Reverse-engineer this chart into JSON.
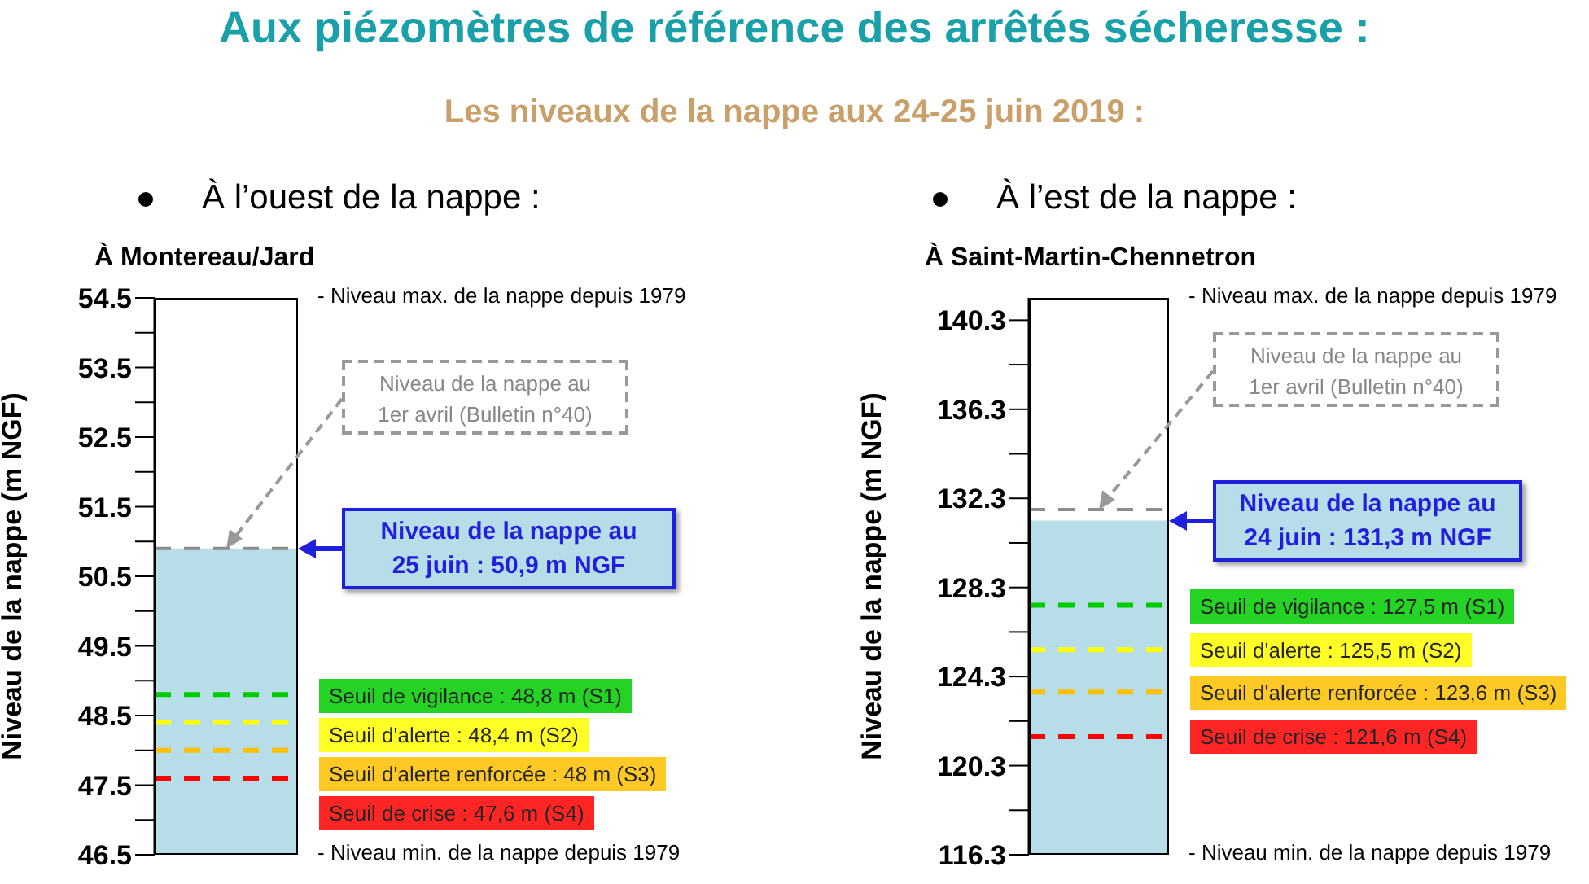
{
  "chart_data": [
    {
      "type": "bar",
      "title": "À Montereau/Jard",
      "subtitle": "À l’ouest de la nappe :",
      "ylabel": "Niveau de la nappe (m NGF)",
      "categories": [
        null
      ],
      "values": [
        50.9
      ],
      "color": "#b7dde8",
      "ylim": [
        46.5,
        54.5
      ],
      "yticks": [
        46.5,
        {
          "value": 47,
          "label": null
        },
        47.5,
        {
          "value": 48,
          "label": null
        },
        48.5,
        {
          "value": 49,
          "label": null
        },
        49.5,
        {
          "value": 50,
          "label": null
        },
        50.5,
        {
          "value": 51,
          "label": null
        },
        51.5,
        {
          "value": 52,
          "label": null
        },
        52.5,
        {
          "value": 53,
          "label": null
        },
        53.5,
        {
          "value": 54,
          "label": null
        },
        54.5
      ],
      "ref_lines": [
        {
          "axis": "y",
          "value": 50.9,
          "label": "Niveau de la nappe au 1er avril (Bulletin n°40)",
          "color": "#8c8c8c",
          "line_style": "dashed"
        },
        {
          "axis": "y",
          "value": 48.8,
          "label": "Seuil de vigilance : 48,8 m (S1)",
          "color": "#00cc00",
          "line_style": "dashed"
        },
        {
          "axis": "y",
          "value": 48.4,
          "label": "Seuil d'alerte : 48,4 m (S2)",
          "color": "#ffff00",
          "line_style": "dashed"
        },
        {
          "axis": "y",
          "value": 48,
          "label": "Seuil d'alerte renforcée : 48 m (S3)",
          "color": "#ffc000",
          "line_style": "dashed"
        },
        {
          "axis": "y",
          "value": 47.6,
          "label": "Seuil de crise : 47,6 m (S4)",
          "color": "#ff0000",
          "line_style": "dashed"
        }
      ],
      "annotations": [
        "Aux piézomètres de référence des arrêtés sécheresse :",
        "Les niveaux de la nappe aux 24-25 juin 2019 :",
        "- Niveau max. de la nappe depuis 1979",
        "- Niveau min. de la nappe depuis 1979",
        "Niveau de la nappe au 25 juin : 50,9 m NGF"
      ]
    },
    {
      "type": "bar",
      "title": "À Saint-Martin-Chennetron",
      "subtitle": "À l’est de la nappe :",
      "ylabel": "Niveau de la nappe (m NGF)",
      "categories": [
        null
      ],
      "values": [
        131.3
      ],
      "color": "#b7dde8",
      "ylim": [
        116.3,
        141.3
      ],
      "yticks": [
        116.3,
        {
          "value": 118.3,
          "label": null
        },
        120.3,
        {
          "value": 122.3,
          "label": null
        },
        124.3,
        {
          "value": 126.3,
          "label": null
        },
        128.3,
        {
          "value": 130.3,
          "label": null
        },
        132.3,
        {
          "value": 134.3,
          "label": null
        },
        136.3,
        {
          "value": 138.3,
          "label": null
        },
        140.3
      ],
      "ref_lines": [
        {
          "axis": "y",
          "value": 131.8,
          "label": "Niveau de la nappe au 1er avril (Bulletin n°40)",
          "color": "#8c8c8c",
          "line_style": "dashed"
        },
        {
          "axis": "y",
          "value": 127.5,
          "label": "Seuil de vigilance : 127,5 m (S1)",
          "color": "#00cc00",
          "line_style": "dashed"
        },
        {
          "axis": "y",
          "value": 125.5,
          "label": "Seuil d'alerte : 125,5 m (S2)",
          "color": "#ffff00",
          "line_style": "dashed"
        },
        {
          "axis": "y",
          "value": 123.6,
          "label": "Seuil d'alerte renforcée : 123,6 m (S3)",
          "color": "#ffc000",
          "line_style": "dashed"
        },
        {
          "axis": "y",
          "value": 121.6,
          "label": "Seuil de crise : 121,6 m (S4)",
          "color": "#ff0000",
          "line_style": "dashed"
        }
      ],
      "annotations": [
        "- Niveau max. de la nappe depuis 1979",
        "- Niveau min. de la nappe depuis 1979",
        "Niveau de la nappe au 24 juin : 131,3 m NGF"
      ]
    }
  ]
}
